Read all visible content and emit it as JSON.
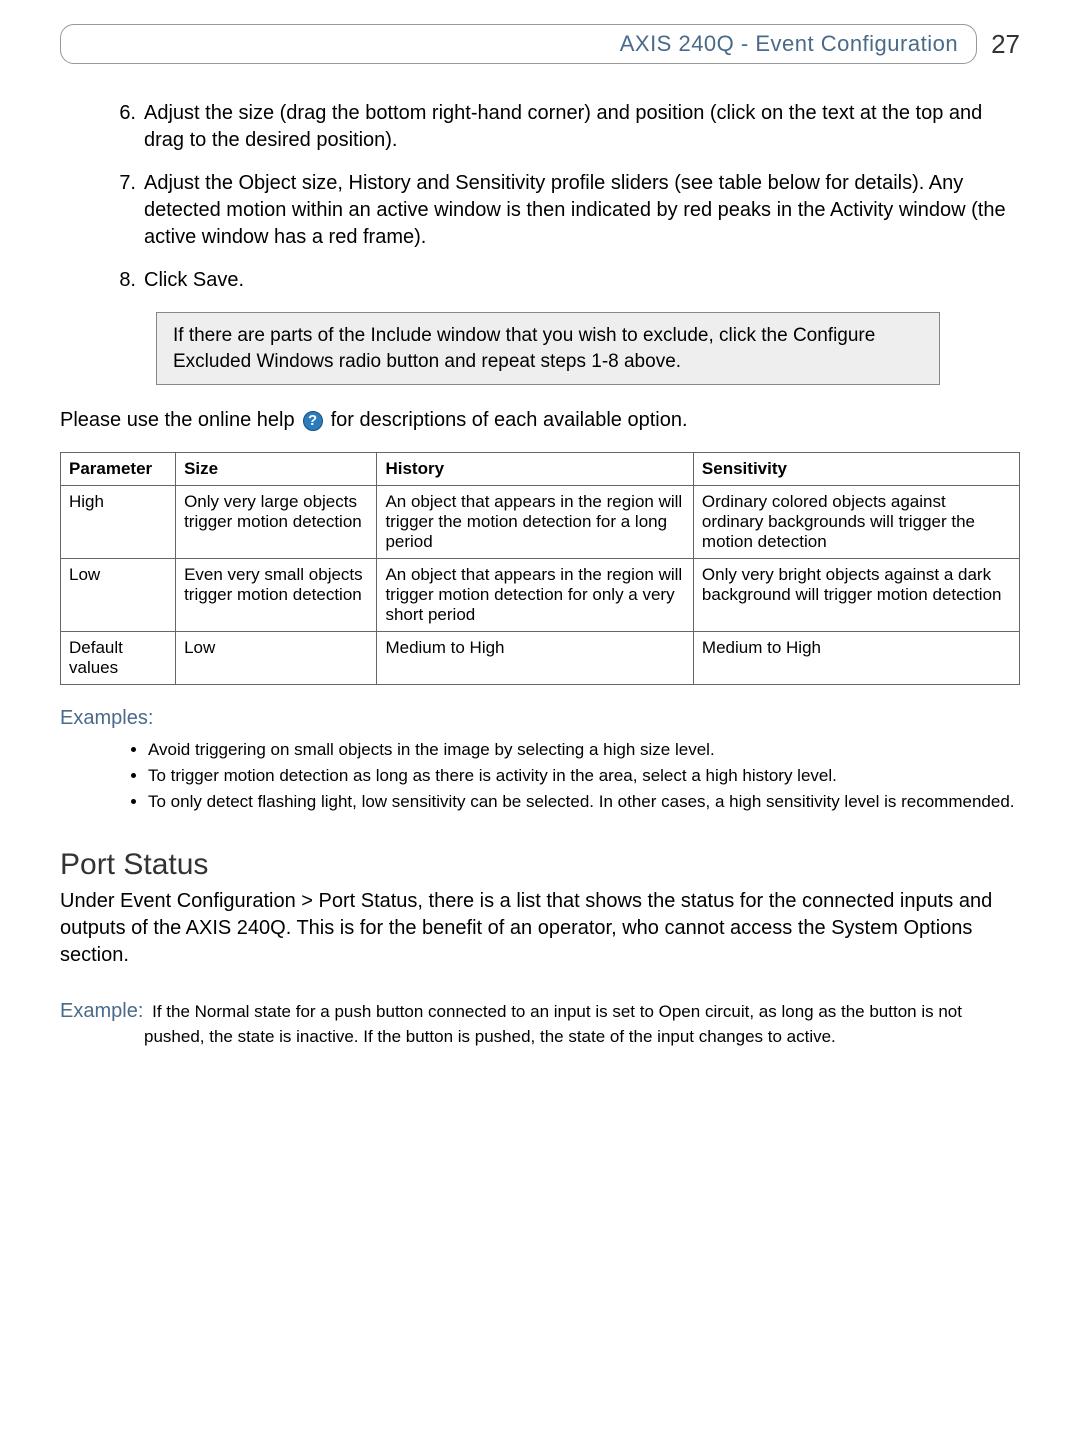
{
  "header": {
    "title": "AXIS 240Q -  Event Configuration",
    "page_number": "27",
    "title_color": "#4a6a8a"
  },
  "steps": [
    {
      "num": "6.",
      "text": "Adjust the size (drag the bottom right-hand corner) and position (click on the text at the top and drag to the desired position)."
    },
    {
      "num": "7.",
      "text": "Adjust the Object size, History and Sensitivity profile sliders (see table below for details). Any detected motion within an active window is then indicated by red peaks in the Activity window (the active window has a red frame)."
    },
    {
      "num": "8.",
      "text": "Click Save."
    }
  ],
  "note_box": "If there are parts of the Include window that you wish to exclude, click the Configure Excluded Windows radio button and repeat steps 1-8 above.",
  "help_line_pre": "Please use the online help",
  "help_line_post": " for descriptions of each available option.",
  "help_icon_glyph": "?",
  "table": {
    "columns": [
      "Parameter",
      "Size",
      "History",
      "Sensitivity"
    ],
    "rows": [
      [
        "High",
        "Only very large objects trigger motion detection",
        "An object that appears in the region will trigger the motion detection for a long period",
        "Ordinary colored objects against ordinary backgrounds will trigger the motion detection"
      ],
      [
        "Low",
        "Even very small objects trigger motion detection",
        "An object that appears in the region will trigger motion detection for only a very short period",
        "Only very bright objects against a dark background will trigger motion detection"
      ],
      [
        "Default values",
        "Low",
        "Medium to High",
        "Medium to High"
      ]
    ],
    "border_color": "#666666",
    "font_size": 17
  },
  "examples_label": "Examples:",
  "examples": [
    "Avoid triggering on small objects in the image by selecting a high size level.",
    "To trigger motion detection as long as there is activity in the area, select a high history level.",
    "To only detect flashing light, low sensitivity can be selected. In other cases, a high sensitivity level is recommended."
  ],
  "port_status": {
    "heading": "Port Status",
    "body": "Under Event Configuration > Port Status, there is a list that shows the status for the connected inputs and outputs of the AXIS 240Q. This is for the benefit of an operator, who cannot access the System Options section.",
    "example_label": "Example:",
    "example_text": "If the Normal state for a push button connected to an input is set to Open circuit, as long as the button is not pushed, the state is inactive. If the button is pushed, the state of the input changes to active."
  }
}
